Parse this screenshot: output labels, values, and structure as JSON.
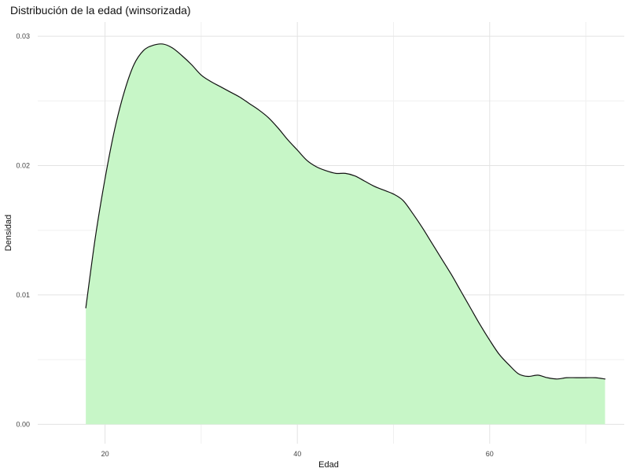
{
  "chart_data": {
    "type": "area",
    "title": "Distribución de la edad (winsorizada)",
    "xlabel": "Edad",
    "ylabel": "Densidad",
    "xlim": [
      13,
      74
    ],
    "ylim": [
      -0.0015,
      0.0311
    ],
    "x_ticks": [
      20,
      40,
      60
    ],
    "y_ticks": [
      0.0,
      0.01,
      0.02,
      0.03
    ],
    "x_tick_labels": [
      "20",
      "40",
      "60"
    ],
    "y_tick_labels": [
      "0.00",
      "0.01",
      "0.02",
      "0.03"
    ],
    "grid": true,
    "fill_color": "#c7f6c7",
    "line_color": "#111111",
    "grid_major_color": "#e3e3e3",
    "grid_minor_color": "#f0f0f0",
    "x": [
      18,
      19,
      20,
      21,
      22,
      23,
      24,
      25,
      26,
      27,
      28,
      29,
      30,
      31,
      32,
      33,
      34,
      35,
      36,
      37,
      38,
      39,
      40,
      41,
      42,
      43,
      44,
      45,
      46,
      47,
      48,
      49,
      50,
      51,
      52,
      53,
      54,
      55,
      56,
      57,
      58,
      59,
      60,
      61,
      62,
      63,
      64,
      65,
      66,
      67,
      68,
      69,
      70,
      71,
      72
    ],
    "y": [
      0.009,
      0.0145,
      0.019,
      0.0228,
      0.0257,
      0.0278,
      0.0289,
      0.0293,
      0.0294,
      0.0291,
      0.0285,
      0.0278,
      0.027,
      0.0265,
      0.0261,
      0.0257,
      0.0253,
      0.0248,
      0.0243,
      0.0237,
      0.0229,
      0.022,
      0.0212,
      0.0204,
      0.0199,
      0.0196,
      0.0194,
      0.0194,
      0.0192,
      0.0188,
      0.0184,
      0.0181,
      0.0178,
      0.0173,
      0.0163,
      0.0152,
      0.014,
      0.0128,
      0.0116,
      0.0103,
      0.009,
      0.0077,
      0.0065,
      0.0054,
      0.0046,
      0.0039,
      0.0037,
      0.0038,
      0.0036,
      0.0035,
      0.0036,
      0.0036,
      0.0036,
      0.0036,
      0.0035
    ]
  }
}
